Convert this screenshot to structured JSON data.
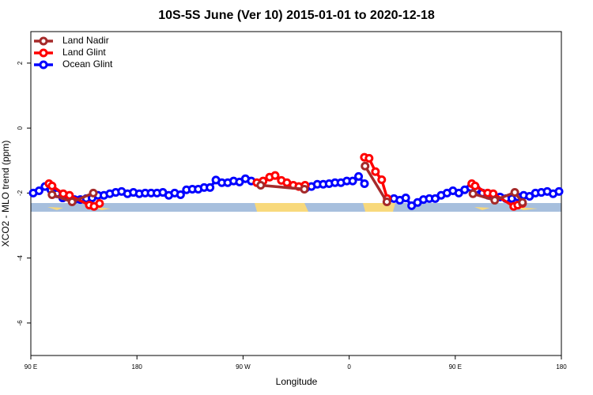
{
  "chart_data": {
    "type": "line",
    "title": "10S-5S June (Ver 10)   2015-01-01 to 2020-12-18",
    "xlabel": "Longitude",
    "ylabel": "XCO2 - MLO trend (ppm)",
    "xlim": [
      90,
      540
    ],
    "ylim": [
      -7,
      2.97
    ],
    "xticks": [
      {
        "value": 90,
        "label": "90 E"
      },
      180,
      {
        "value": 270,
        "label": "90 W"
      },
      {
        "value": 360,
        "label": "0"
      },
      {
        "value": 450,
        "label": "90 E"
      },
      {
        "value": 540,
        "label": "180"
      }
    ],
    "yticks": [
      -6,
      -4,
      -2,
      0,
      2
    ],
    "legend": "topleft",
    "series": [
      {
        "name": "Land Nadir",
        "color": "#a52a2a",
        "x": [
          108,
          125,
          143,
          null,
          285,
          322,
          null,
          373.5,
          392,
          null,
          465,
          483.5,
          500.5,
          507
        ],
        "values": [
          -2.05,
          -2.27,
          -2.0,
          null,
          -1.76,
          -1.88,
          null,
          -1.17,
          -2.27,
          null,
          -2.02,
          -2.22,
          -1.98,
          -2.29
        ]
      },
      {
        "name": "Land Glint",
        "color": "#ff0000",
        "x": [
          105.4,
          108,
          117.5,
          122.8,
          139.6,
          143.6,
          148.3,
          null,
          281.7,
          287,
          292.5,
          297.2,
          302.5,
          307.2,
          312.6,
          317.3,
          322.6,
          null,
          372.9,
          376.9,
          382.3,
          387.6,
          392.3,
          null,
          464,
          466.8,
          477.5,
          482.2,
          499.6,
          503,
          507
        ],
        "values": [
          -1.71,
          -1.78,
          -2.02,
          -2.07,
          -2.37,
          -2.41,
          -2.32,
          null,
          -1.68,
          -1.63,
          -1.51,
          -1.46,
          -1.61,
          -1.68,
          -1.76,
          -1.8,
          -1.76,
          null,
          -0.9,
          -0.93,
          -1.34,
          -1.59,
          -2.17,
          null,
          -1.71,
          -1.78,
          -2.0,
          -2.02,
          -2.41,
          -2.37,
          -2.32
        ]
      },
      {
        "name": "Ocean Glint",
        "color": "#0000ff",
        "x": [
          92,
          97,
          102,
          107,
          112,
          117,
          122,
          127,
          132,
          137,
          142,
          147,
          152,
          157,
          162,
          167,
          172,
          177,
          182,
          187,
          192,
          197,
          202,
          207,
          212,
          217,
          222,
          227,
          232,
          237,
          242,
          247,
          252,
          257,
          262,
          267,
          272,
          277,
          null,
          323,
          328,
          333,
          338,
          343,
          348,
          353,
          358,
          363,
          368,
          373,
          null,
          398,
          403,
          408,
          413,
          418,
          423,
          428,
          433,
          438,
          443,
          448,
          453,
          458,
          463,
          468,
          473,
          478,
          483,
          488,
          493,
          498,
          503,
          508,
          513,
          518,
          523,
          528,
          533,
          538
        ],
        "values": [
          -2.0,
          -1.93,
          -1.8,
          -1.9,
          -2.02,
          -2.15,
          -2.12,
          -2.2,
          -2.2,
          -2.17,
          -2.15,
          -2.07,
          -2.07,
          -2.02,
          -1.98,
          -1.95,
          -2.02,
          -1.98,
          -2.02,
          -2.0,
          -2.0,
          -2.0,
          -1.98,
          -2.07,
          -2.0,
          -2.05,
          -1.9,
          -1.88,
          -1.88,
          -1.83,
          -1.83,
          -1.6,
          -1.68,
          -1.68,
          -1.63,
          -1.66,
          -1.56,
          -1.63,
          null,
          -1.85,
          -1.8,
          -1.73,
          -1.73,
          -1.71,
          -1.68,
          -1.68,
          -1.63,
          -1.63,
          -1.49,
          -1.71,
          null,
          -2.17,
          -2.22,
          -2.15,
          -2.39,
          -2.29,
          -2.2,
          -2.17,
          -2.17,
          -2.07,
          -2.0,
          -1.93,
          -2.0,
          -1.9,
          -1.83,
          -1.88,
          -2.0,
          -2.07,
          -2.1,
          -2.12,
          -2.17,
          -2.17,
          -2.12,
          -2.07,
          -2.1,
          -2.0,
          -1.98,
          -1.95,
          -2.02,
          -1.95
        ]
      }
    ]
  }
}
